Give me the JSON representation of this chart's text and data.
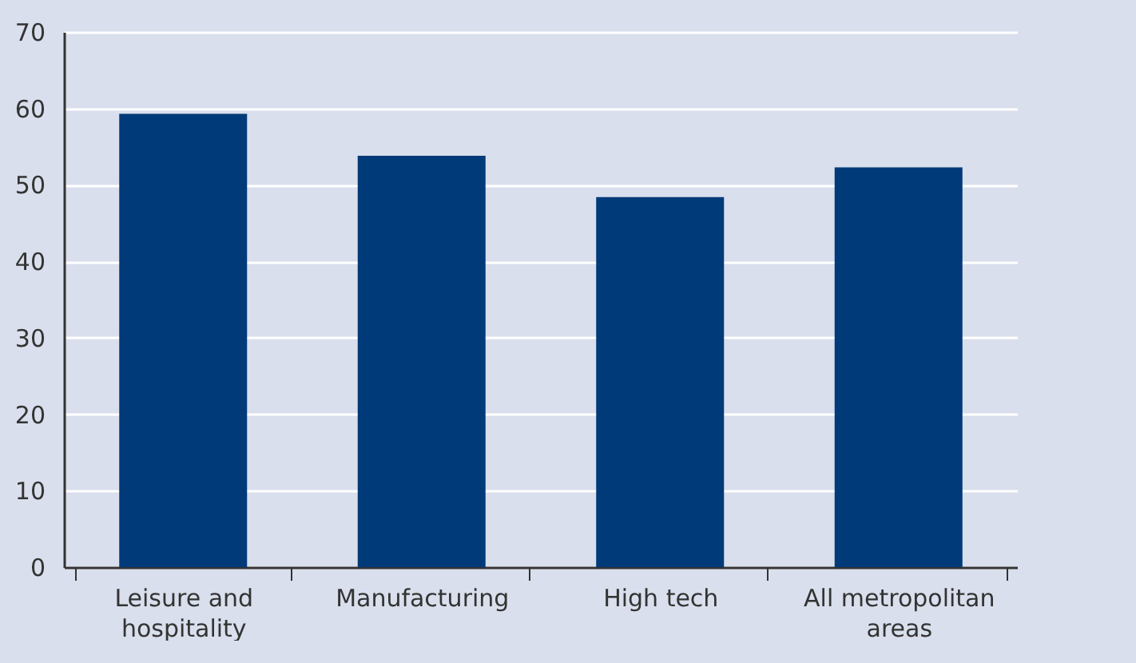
{
  "chart_data": {
    "type": "bar",
    "categories": [
      "Leisure and hospitality",
      "Manufacturing",
      "High tech",
      "All metropolitan areas"
    ],
    "values": [
      59.3,
      53.8,
      48.4,
      52.3
    ],
    "color": "#003a78",
    "ylim": [
      0,
      70
    ],
    "yticks": [
      0,
      10,
      20,
      30,
      40,
      50,
      60,
      70
    ],
    "grid": "y"
  }
}
